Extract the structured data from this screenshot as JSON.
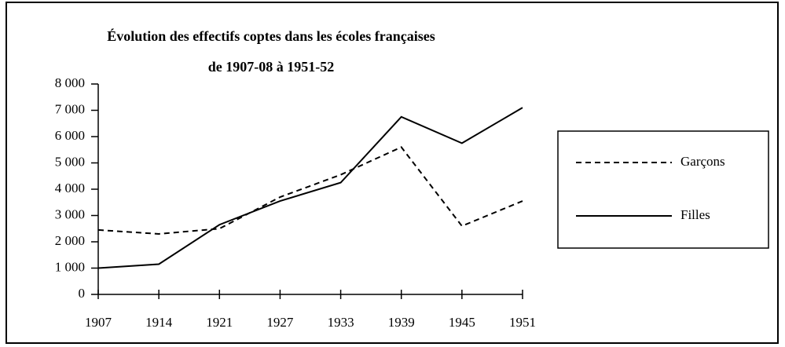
{
  "chart_data": {
    "type": "line",
    "title": [
      "Évolution des effectifs coptes dans les écoles françaises",
      "de 1907-08 à 1951-52"
    ],
    "categories": [
      "1907",
      "1914",
      "1921",
      "1927",
      "1933",
      "1939",
      "1945",
      "1951"
    ],
    "series": [
      {
        "name": "Garçons",
        "color": "#000000",
        "dash": "dashed",
        "values": [
          2450,
          2300,
          2500,
          3700,
          4550,
          5600,
          2600,
          3550
        ]
      },
      {
        "name": "Filles",
        "color": "#000000",
        "dash": "solid",
        "values": [
          1000,
          1150,
          2650,
          3550,
          4250,
          6750,
          5750,
          7100
        ]
      }
    ],
    "ylim": [
      0,
      8000
    ],
    "yticks": [
      0,
      {
        "value": 1000,
        "label": "1 000"
      },
      {
        "value": 2000,
        "label": "2 000"
      },
      {
        "value": 3000,
        "label": "3 000"
      },
      {
        "value": 4000,
        "label": "4 000"
      },
      {
        "value": 5000,
        "label": "5 000"
      },
      {
        "value": 6000,
        "label": "6 000"
      },
      {
        "value": 7000,
        "label": "7 000"
      },
      {
        "value": 8000,
        "label": "8 000"
      }
    ],
    "grid": false,
    "legend": "right"
  }
}
